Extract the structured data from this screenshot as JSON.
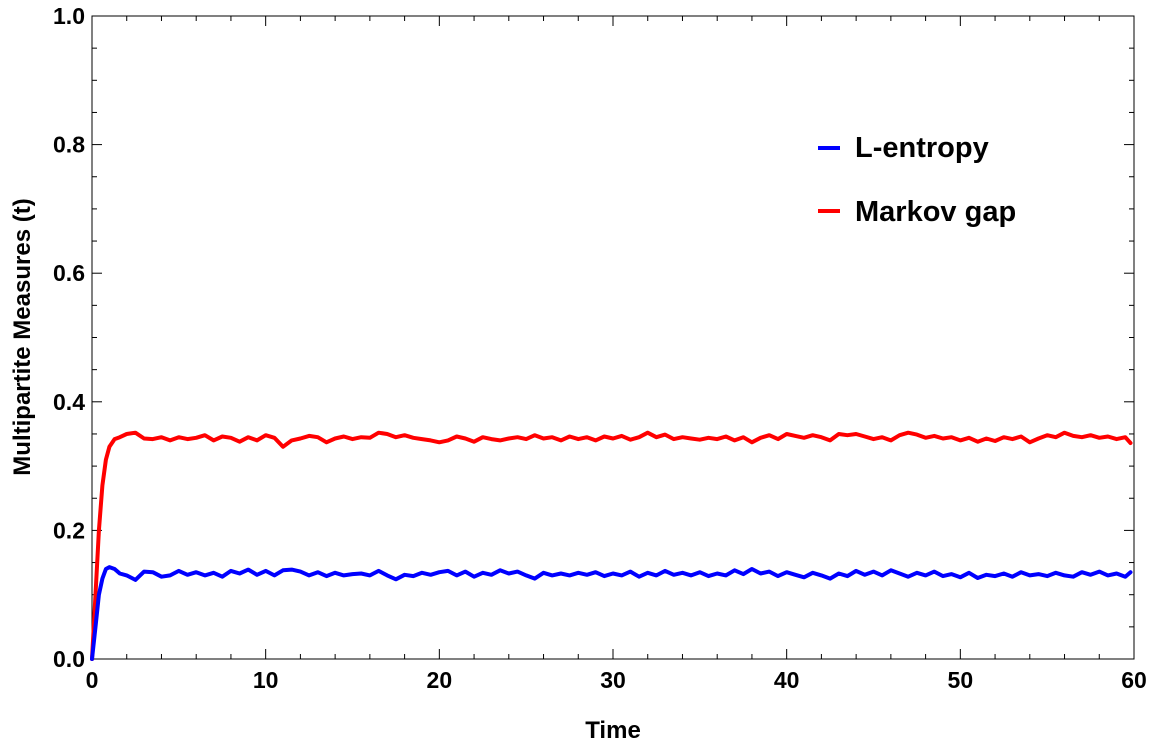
{
  "chart_data": {
    "type": "line",
    "xlabel": "Time",
    "ylabel": "Multipartite Measures (t)",
    "xlim": [
      0,
      60
    ],
    "ylim": [
      0,
      1
    ],
    "xticks": [
      0,
      10,
      20,
      30,
      40,
      50,
      60
    ],
    "yticks": [
      0.0,
      0.2,
      0.4,
      0.6,
      0.8,
      1.0
    ],
    "xtick_labels": [
      "0",
      "10",
      "20",
      "30",
      "40",
      "50",
      "60"
    ],
    "ytick_labels": [
      "0.0",
      "0.2",
      "0.4",
      "0.6",
      "0.8",
      "1.0"
    ],
    "grid": false,
    "legend_position": "top-right",
    "series": [
      {
        "name": "L-entropy",
        "color": "#0000ff",
        "x": [
          0,
          0.2,
          0.4,
          0.6,
          0.8,
          1.0,
          1.3,
          1.6,
          2.0,
          2.5,
          3,
          3.5,
          4,
          4.5,
          5,
          5.5,
          6,
          6.5,
          7,
          7.5,
          8,
          8.5,
          9,
          9.5,
          10,
          10.5,
          11,
          11.5,
          12,
          12.5,
          13,
          13.5,
          14,
          14.5,
          15,
          15.5,
          16,
          16.5,
          17,
          17.5,
          18,
          18.5,
          19,
          19.5,
          20,
          20.5,
          21,
          21.5,
          22,
          22.5,
          23,
          23.5,
          24,
          24.5,
          25,
          25.5,
          26,
          26.5,
          27,
          27.5,
          28,
          28.5,
          29,
          29.5,
          30,
          30.5,
          31,
          31.5,
          32,
          32.5,
          33,
          33.5,
          34,
          34.5,
          35,
          35.5,
          36,
          36.5,
          37,
          37.5,
          38,
          38.5,
          39,
          39.5,
          40,
          40.5,
          41,
          41.5,
          42,
          42.5,
          43,
          43.5,
          44,
          44.5,
          45,
          45.5,
          46,
          46.5,
          47,
          47.5,
          48,
          48.5,
          49,
          49.5,
          50,
          50.5,
          51,
          51.5,
          52,
          52.5,
          53,
          53.5,
          54,
          54.5,
          55,
          55.5,
          56,
          56.5,
          57,
          57.5,
          58,
          58.5,
          59,
          59.5,
          59.8
        ],
        "y": [
          0.0,
          0.05,
          0.1,
          0.125,
          0.14,
          0.143,
          0.14,
          0.133,
          0.13,
          0.123,
          0.136,
          0.135,
          0.128,
          0.13,
          0.137,
          0.131,
          0.135,
          0.13,
          0.134,
          0.128,
          0.137,
          0.133,
          0.139,
          0.131,
          0.137,
          0.13,
          0.138,
          0.139,
          0.136,
          0.13,
          0.135,
          0.129,
          0.134,
          0.13,
          0.132,
          0.133,
          0.13,
          0.137,
          0.13,
          0.124,
          0.131,
          0.129,
          0.134,
          0.131,
          0.135,
          0.137,
          0.13,
          0.136,
          0.128,
          0.134,
          0.131,
          0.138,
          0.133,
          0.136,
          0.13,
          0.125,
          0.134,
          0.13,
          0.133,
          0.13,
          0.134,
          0.131,
          0.135,
          0.129,
          0.133,
          0.13,
          0.136,
          0.128,
          0.134,
          0.13,
          0.137,
          0.131,
          0.134,
          0.13,
          0.135,
          0.129,
          0.133,
          0.13,
          0.138,
          0.132,
          0.14,
          0.133,
          0.136,
          0.129,
          0.135,
          0.131,
          0.127,
          0.134,
          0.13,
          0.125,
          0.133,
          0.129,
          0.137,
          0.131,
          0.136,
          0.13,
          0.138,
          0.133,
          0.128,
          0.134,
          0.13,
          0.136,
          0.129,
          0.132,
          0.127,
          0.134,
          0.126,
          0.131,
          0.129,
          0.133,
          0.128,
          0.135,
          0.13,
          0.132,
          0.129,
          0.134,
          0.13,
          0.128,
          0.135,
          0.131,
          0.136,
          0.13,
          0.133,
          0.128,
          0.135
        ]
      },
      {
        "name": "Markov gap",
        "color": "#ff0000",
        "x": [
          0,
          0.2,
          0.4,
          0.6,
          0.8,
          1.0,
          1.3,
          1.6,
          2.0,
          2.5,
          3,
          3.5,
          4,
          4.5,
          5,
          5.5,
          6,
          6.5,
          7,
          7.5,
          8,
          8.5,
          9,
          9.5,
          10,
          10.5,
          11,
          11.5,
          12,
          12.5,
          13,
          13.5,
          14,
          14.5,
          15,
          15.5,
          16,
          16.5,
          17,
          17.5,
          18,
          18.5,
          19,
          19.5,
          20,
          20.5,
          21,
          21.5,
          22,
          22.5,
          23,
          23.5,
          24,
          24.5,
          25,
          25.5,
          26,
          26.5,
          27,
          27.5,
          28,
          28.5,
          29,
          29.5,
          30,
          30.5,
          31,
          31.5,
          32,
          32.5,
          33,
          33.5,
          34,
          34.5,
          35,
          35.5,
          36,
          36.5,
          37,
          37.5,
          38,
          38.5,
          39,
          39.5,
          40,
          40.5,
          41,
          41.5,
          42,
          42.5,
          43,
          43.5,
          44,
          44.5,
          45,
          45.5,
          46,
          46.5,
          47,
          47.5,
          48,
          48.5,
          49,
          49.5,
          50,
          50.5,
          51,
          51.5,
          52,
          52.5,
          53,
          53.5,
          54,
          54.5,
          55,
          55.5,
          56,
          56.5,
          57,
          57.5,
          58,
          58.5,
          59,
          59.5,
          59.8
        ],
        "y": [
          0.0,
          0.1,
          0.2,
          0.27,
          0.31,
          0.33,
          0.342,
          0.345,
          0.35,
          0.352,
          0.343,
          0.342,
          0.345,
          0.34,
          0.345,
          0.342,
          0.344,
          0.348,
          0.34,
          0.346,
          0.344,
          0.338,
          0.345,
          0.34,
          0.348,
          0.344,
          0.33,
          0.34,
          0.343,
          0.347,
          0.345,
          0.337,
          0.343,
          0.346,
          0.342,
          0.345,
          0.344,
          0.352,
          0.35,
          0.345,
          0.348,
          0.344,
          0.342,
          0.34,
          0.337,
          0.34,
          0.346,
          0.343,
          0.338,
          0.345,
          0.342,
          0.34,
          0.343,
          0.345,
          0.342,
          0.348,
          0.343,
          0.345,
          0.34,
          0.346,
          0.342,
          0.345,
          0.34,
          0.346,
          0.343,
          0.347,
          0.341,
          0.345,
          0.352,
          0.345,
          0.349,
          0.342,
          0.345,
          0.343,
          0.341,
          0.344,
          0.342,
          0.346,
          0.34,
          0.345,
          0.337,
          0.344,
          0.348,
          0.342,
          0.35,
          0.347,
          0.344,
          0.348,
          0.345,
          0.34,
          0.35,
          0.348,
          0.35,
          0.346,
          0.342,
          0.345,
          0.34,
          0.348,
          0.352,
          0.349,
          0.344,
          0.347,
          0.343,
          0.345,
          0.34,
          0.344,
          0.338,
          0.343,
          0.339,
          0.345,
          0.342,
          0.346,
          0.337,
          0.343,
          0.348,
          0.345,
          0.352,
          0.347,
          0.345,
          0.348,
          0.344,
          0.346,
          0.342,
          0.345,
          0.336
        ]
      }
    ]
  }
}
